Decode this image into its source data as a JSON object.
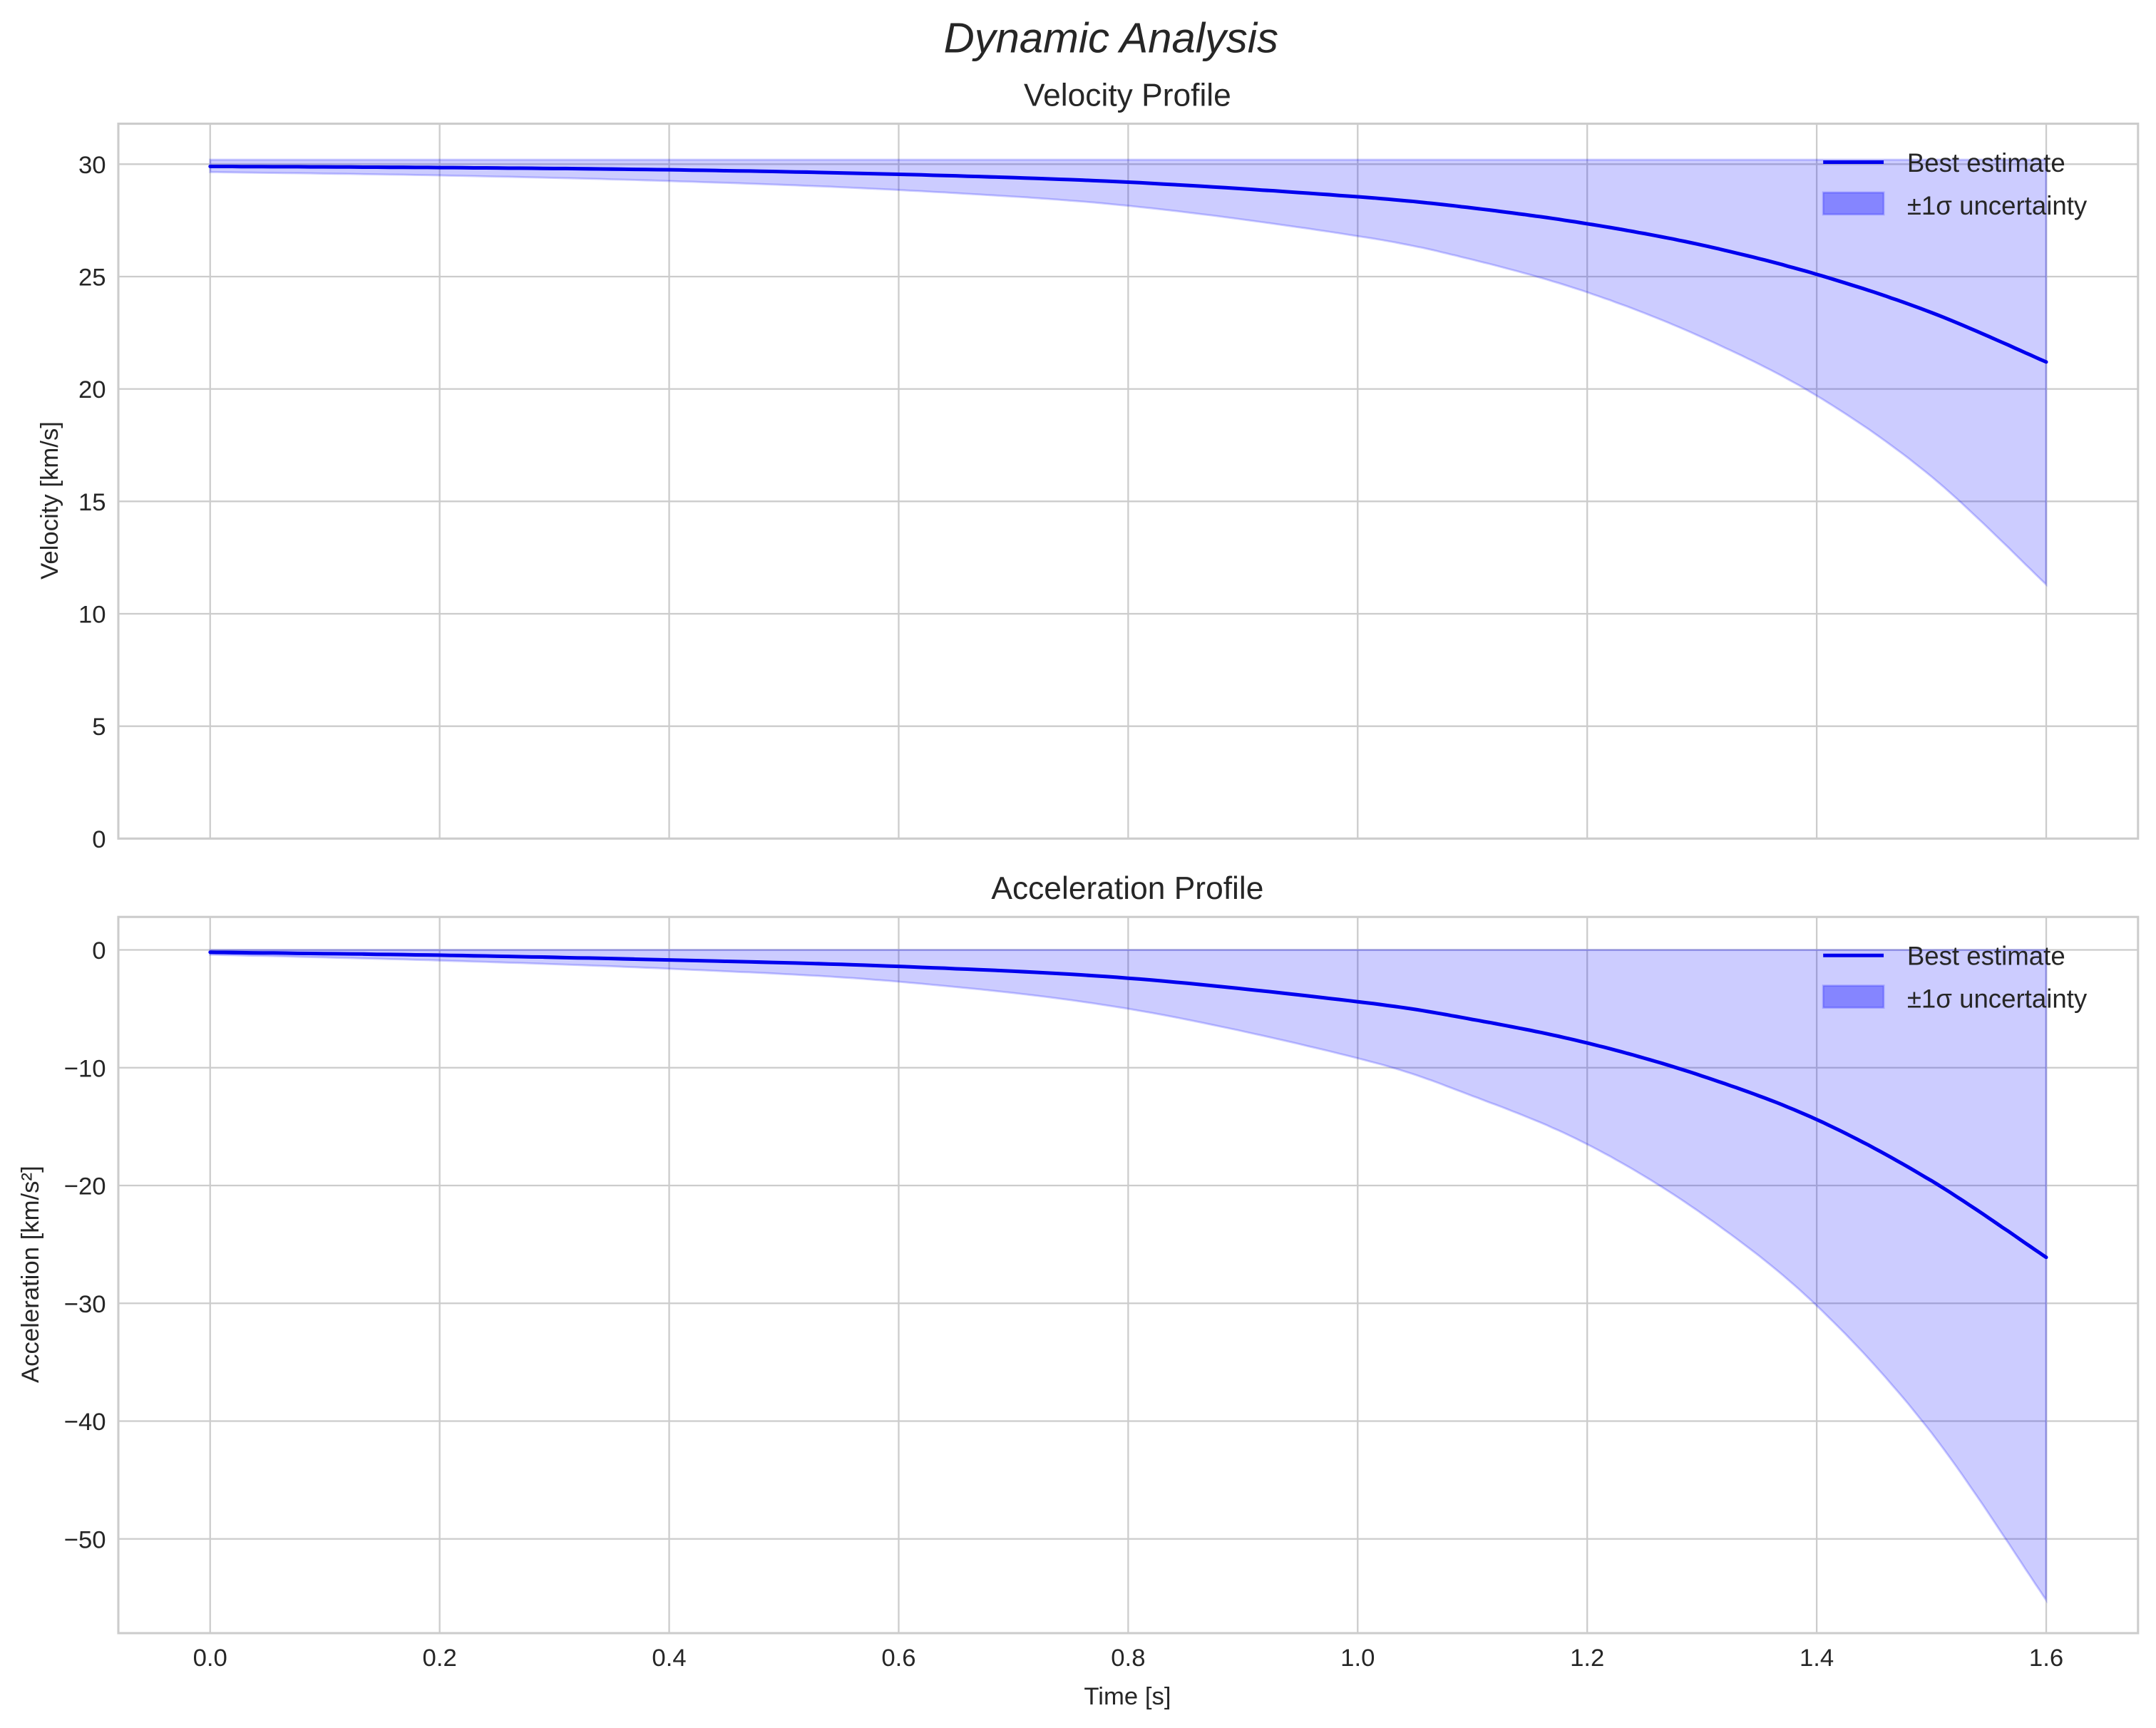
{
  "figure": {
    "suptitle": "Dynamic Analysis",
    "xlabel": "Time [s]",
    "colors": {
      "line": "#0000ee",
      "band_fill": "#0000ff",
      "band_alpha": 0.2,
      "grid": "#cccccc",
      "text": "#262626"
    }
  },
  "chart_data": [
    {
      "type": "line",
      "title": "Velocity Profile",
      "xlabel": "",
      "ylabel": "Velocity [km/s]",
      "xlim": [
        -0.08,
        1.68
      ],
      "ylim": [
        0,
        31.8
      ],
      "grid": true,
      "legend_position": "upper right",
      "legend": [
        "Best estimate",
        "±1σ uncertainty"
      ],
      "x_ticks": [
        "0.0",
        "0.2",
        "0.4",
        "0.6",
        "0.8",
        "1.0",
        "1.2",
        "1.4",
        "1.6"
      ],
      "y_ticks": [
        "0",
        "5",
        "10",
        "15",
        "20",
        "25",
        "30"
      ],
      "y_tick_values": [
        0,
        5,
        10,
        15,
        20,
        25,
        30
      ],
      "x": [
        0.0,
        0.2,
        0.4,
        0.6,
        0.8,
        1.0,
        1.1,
        1.2,
        1.3,
        1.4,
        1.5,
        1.6
      ],
      "series": [
        {
          "name": "Best estimate",
          "values": [
            29.9,
            29.85,
            29.75,
            29.55,
            29.2,
            28.55,
            28.05,
            27.35,
            26.4,
            25.1,
            23.4,
            21.2
          ]
        },
        {
          "name": "±1σ upper",
          "values": [
            30.2,
            30.2,
            30.2,
            30.2,
            30.2,
            30.2,
            30.2,
            30.2,
            30.2,
            30.2,
            30.2,
            30.2
          ]
        },
        {
          "name": "±1σ lower",
          "values": [
            29.65,
            29.5,
            29.25,
            28.85,
            28.15,
            26.8,
            25.75,
            24.3,
            22.3,
            19.7,
            16.1,
            11.3
          ]
        }
      ]
    },
    {
      "type": "line",
      "title": "Acceleration Profile",
      "xlabel": "Time [s]",
      "ylabel": "Acceleration [km/s²]",
      "xlim": [
        -0.08,
        1.68
      ],
      "ylim": [
        -58,
        2.8
      ],
      "grid": true,
      "legend_position": "upper right",
      "legend": [
        "Best estimate",
        "±1σ uncertainty"
      ],
      "x_ticks": [
        "0.0",
        "0.2",
        "0.4",
        "0.6",
        "0.8",
        "1.0",
        "1.2",
        "1.4",
        "1.6"
      ],
      "y_ticks": [
        "0",
        "−10",
        "−20",
        "−30",
        "−40",
        "−50"
      ],
      "y_tick_values": [
        0,
        -10,
        -20,
        -30,
        -40,
        -50
      ],
      "x": [
        0.0,
        0.2,
        0.4,
        0.6,
        0.8,
        1.0,
        1.1,
        1.2,
        1.3,
        1.4,
        1.5,
        1.6
      ],
      "series": [
        {
          "name": "Best estimate",
          "values": [
            -0.2,
            -0.45,
            -0.85,
            -1.4,
            -2.4,
            -4.4,
            -5.9,
            -7.9,
            -10.7,
            -14.4,
            -19.6,
            -26.1
          ]
        },
        {
          "name": "±1σ upper",
          "values": [
            0,
            0,
            0,
            0,
            0,
            0,
            0,
            0,
            0,
            0,
            0,
            0
          ]
        },
        {
          "name": "±1σ lower",
          "values": [
            -0.4,
            -0.9,
            -1.6,
            -2.7,
            -5.0,
            -9.2,
            -12.4,
            -16.5,
            -22.4,
            -30.2,
            -41.0,
            -55.2
          ]
        }
      ]
    }
  ]
}
